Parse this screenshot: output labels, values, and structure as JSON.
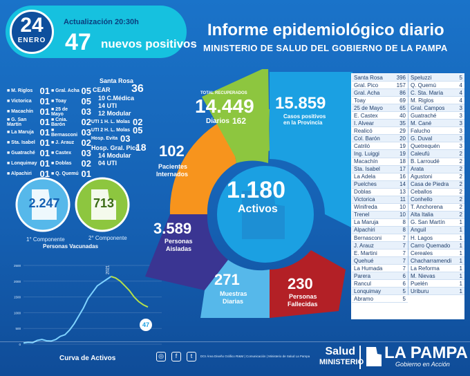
{
  "header": {
    "day": "24",
    "month": "ENERO",
    "update": "Actualización 20:30h",
    "new_positive_number": "47",
    "new_positive_label": "nuevos positivos",
    "title": "Informe epidemiológico diario",
    "subtitle": "MINISTERIO DE SALUD DEL GOBIERNO DE LA PAMPA"
  },
  "left_list": [
    {
      "name": "M. Riglos",
      "value": "01"
    },
    {
      "name": "Victorica",
      "value": "01"
    },
    {
      "name": "Macachín",
      "value": "01"
    },
    {
      "name": "G. San Martín",
      "value": "01"
    },
    {
      "name": "La Maruja",
      "value": "01"
    },
    {
      "name": "Sta. Isabel",
      "value": "01"
    },
    {
      "name": "Guatraché",
      "value": "01"
    },
    {
      "name": "Lonquimay",
      "value": "01"
    },
    {
      "name": "Alpachiri",
      "value": "01"
    }
  ],
  "mid_list": [
    {
      "name": "Gral. Acha",
      "value": "05"
    },
    {
      "name": "Toay",
      "value": "05"
    },
    {
      "name": "25 de Mayo",
      "value": "03"
    },
    {
      "name": "Cnia. Barón",
      "value": "02"
    },
    {
      "name": "Bernasconi",
      "value": "03"
    },
    {
      "name": "J. Arauz",
      "value": "02"
    },
    {
      "name": "Castex",
      "value": "03"
    },
    {
      "name": "Doblas",
      "value": "02"
    },
    {
      "name": "Q. Quemú",
      "value": "01"
    }
  ],
  "santa_rosa": {
    "title": "Santa Rosa",
    "cear_label": "CEAR",
    "cear_value": "36",
    "cmedica": "10 C.Médica",
    "uti": "14 UTI",
    "modular": "12 Modular",
    "molas1": "UTI 1 H. L. Molas",
    "molas1_val": "02",
    "molas2": "UTI 2 H. L. Molas",
    "molas2_val": "05",
    "evita": "Hosp. Evita",
    "evita_val": "03",
    "pico": "Hosp. Gral. Pico",
    "pico_val": "18",
    "pico_modular": "14 Modular",
    "pico_uti": "04 UTI"
  },
  "components": {
    "first_value": "2.247",
    "first_label": "1° Componente",
    "second_value": "713",
    "second_label": "2° Componente",
    "title": "Personas Vacunadas"
  },
  "wheel": {
    "center_value": "1.180",
    "center_label": "Activos",
    "recovered_title": "TOTAL RECUPERADOS",
    "recovered_value": "14.449",
    "recovered_daily_label": "Diarios",
    "recovered_daily": "162",
    "cases_value": "15.859",
    "cases_label1": "Casos positivos",
    "cases_label2": "en la Provincia",
    "inpatients_value": "102",
    "inpatients_label1": "Pacientes",
    "inpatients_label2": "Internados",
    "isolated_value": "3.589",
    "isolated_label1": "Personas",
    "isolated_label2": "Aisladas",
    "samples_value": "271",
    "samples_label1": "Muestras",
    "samples_label2": "Diarias",
    "deaths_value": "230",
    "deaths_label1": "Personas",
    "deaths_label2": "Fallecidas"
  },
  "chart_data": {
    "type": "line",
    "title": "Curva de Activos",
    "yticks": [
      "2500",
      "2000",
      "1500",
      "1000",
      "500",
      "0"
    ],
    "peak_label": "2021",
    "last_label": "47",
    "ylim": [
      0,
      2500
    ],
    "series": [
      {
        "values": [
          40,
          60,
          50,
          120,
          150,
          110,
          100,
          150,
          250,
          300,
          450,
          650,
          900,
          1150,
          1450,
          1650,
          1850,
          1950,
          2050,
          2150,
          2100,
          2000,
          1850,
          1700,
          1500,
          1350,
          1250,
          1180
        ]
      }
    ]
  },
  "table_left": [
    [
      "Santa Rosa",
      "396"
    ],
    [
      "Gral. Pico",
      "157"
    ],
    [
      "Gral. Acha",
      "86"
    ],
    [
      "Toay",
      "69"
    ],
    [
      "25 de Mayo",
      "65"
    ],
    [
      "E. Castex",
      "40"
    ],
    [
      "I. Alvear",
      "35"
    ],
    [
      "Realicó",
      "29"
    ],
    [
      "Col. Barón",
      "20"
    ],
    [
      "Catriló",
      "19"
    ],
    [
      "Ing. Luiggi",
      "19"
    ],
    [
      "Macachín",
      "18"
    ],
    [
      "Sta. Isabel",
      "17"
    ],
    [
      "La Adela",
      "16"
    ],
    [
      "Puelches",
      "14"
    ],
    [
      "Doblas",
      "13"
    ],
    [
      "Victorica",
      "11"
    ],
    [
      "Winifreda",
      "10"
    ],
    [
      "Trenel",
      "10"
    ],
    [
      "La Maruja",
      "8"
    ],
    [
      "Alpachiri",
      "8"
    ],
    [
      "Bernasconi",
      "7"
    ],
    [
      "J. Arauz",
      "7"
    ],
    [
      "E. Martini",
      "7"
    ],
    [
      "Quehué",
      "7"
    ],
    [
      "La Humada",
      "7"
    ],
    [
      "Parera",
      "6"
    ],
    [
      "Rancul",
      "6"
    ],
    [
      "Lonquimay",
      "5"
    ],
    [
      "Abramo",
      "5"
    ]
  ],
  "table_right": [
    [
      "Speluzzi",
      "5"
    ],
    [
      "Q. Quemú",
      "4"
    ],
    [
      "C. Sta. María",
      "4"
    ],
    [
      "M. Riglos",
      "4"
    ],
    [
      "Gral. Campos",
      "3"
    ],
    [
      "Guatraché",
      "3"
    ],
    [
      "M. Cané",
      "3"
    ],
    [
      "Falucho",
      "3"
    ],
    [
      "G. Duval",
      "3"
    ],
    [
      "Quetrequén",
      "3"
    ],
    [
      "Caleufú",
      "2"
    ],
    [
      "B. Larroudé",
      "2"
    ],
    [
      "Arata",
      "2"
    ],
    [
      "Agustoni",
      "2"
    ],
    [
      "Casa de Piedra",
      "2"
    ],
    [
      "Ceballos",
      "2"
    ],
    [
      "Conhello",
      "2"
    ],
    [
      "T. Anchorena",
      "2"
    ],
    [
      "Alta Italia",
      "2"
    ],
    [
      "G. San Martín",
      "1"
    ],
    [
      "Anguil",
      "1"
    ],
    [
      "H. Lagos",
      "1"
    ],
    [
      "Carro Quemado",
      "1"
    ],
    [
      "Cereales",
      "1"
    ],
    [
      "Chacharramendi",
      "1"
    ],
    [
      "La Reforma",
      "1"
    ],
    [
      "M. Nievas",
      "1"
    ],
    [
      "Puelén",
      "1"
    ],
    [
      "Uriburu",
      "1"
    ]
  ],
  "footer": {
    "credits": "DGI Área Diseño Gráfico RI&M | Comunicación | Ministerio de Salud La Pampa",
    "salud": "Salud",
    "ministerio": "MINISTERIO",
    "la_pampa": "LA PAMPA",
    "gobierno": "Gobierno en Acción"
  },
  "colors": {
    "green": "#8dc63f",
    "blue": "#1ba0e2",
    "orange": "#f7941d",
    "purple": "#3a3592",
    "light": "#56b8ea",
    "red": "#b32026"
  }
}
